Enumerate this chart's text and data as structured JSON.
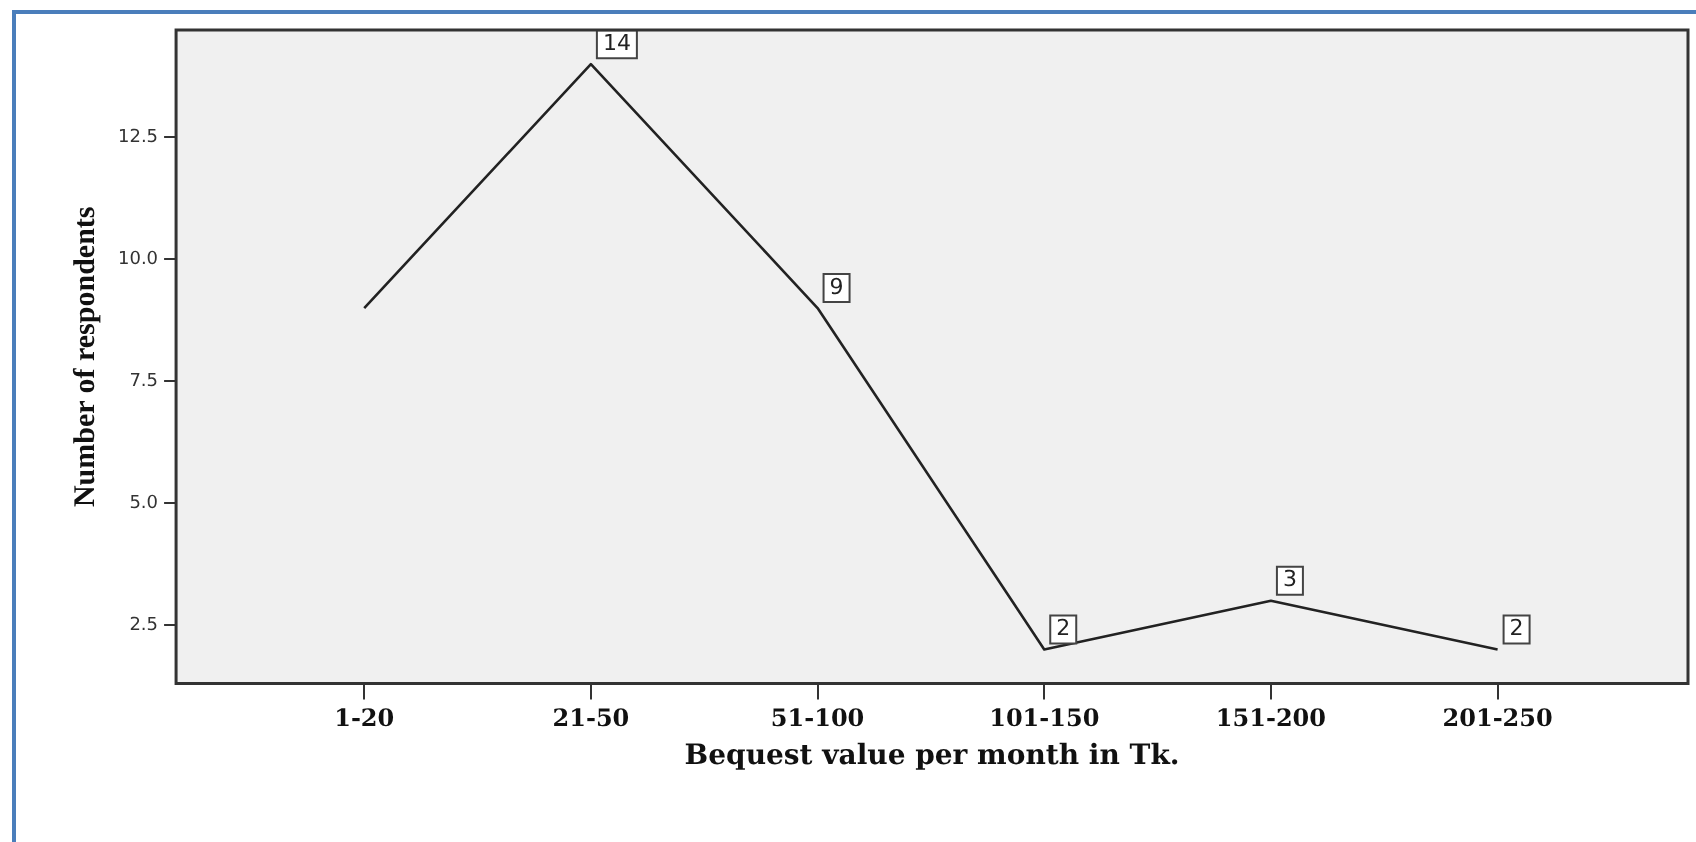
{
  "chart_data": {
    "type": "line",
    "xlabel": "Bequest value per month in Tk.",
    "ylabel": "Number of respondents",
    "categories": [
      "1-20",
      "21-50",
      "51-100",
      "101-150",
      "151-200",
      "201-250"
    ],
    "values": [
      9,
      14,
      9,
      2,
      3,
      2
    ],
    "value_labels": [
      null,
      "14",
      "9",
      "2",
      "3",
      "2"
    ],
    "color": "#222222",
    "marker": "none",
    "line_style": "solid",
    "ylim": [
      1.3,
      14.7
    ],
    "yticks": [
      {
        "value": 2.5,
        "label": "2.5"
      },
      {
        "value": 5,
        "label": "5.0"
      },
      {
        "value": 7.5,
        "label": "7.5"
      },
      {
        "value": 10,
        "label": "10.0"
      },
      {
        "value": 12.5,
        "label": "12.5"
      }
    ],
    "grid": false,
    "legend": false
  }
}
